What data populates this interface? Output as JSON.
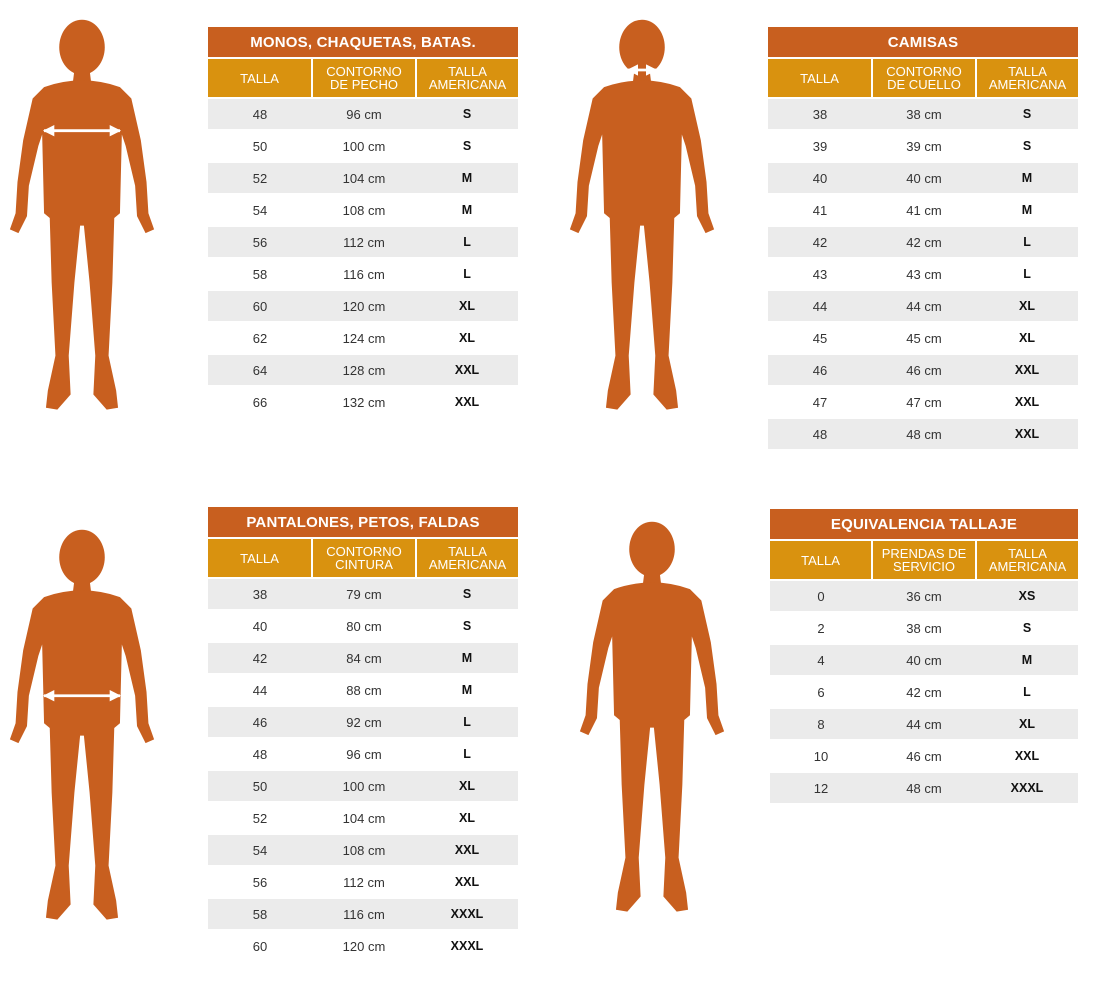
{
  "colors": {
    "figure": "#c85f1f",
    "title_bar": "#c85f1f",
    "header_bar": "#d9920f",
    "row_shade": "#ebebeb",
    "arrow": "#ffffff"
  },
  "icons": [
    "man-silhouette-chest-measure-icon",
    "man-silhouette-neck-measure-icon",
    "man-silhouette-waist-measure-icon",
    "man-silhouette-icon"
  ],
  "tables": {
    "monos": {
      "title": "MONOS, CHAQUETAS, BATAS.",
      "headers": [
        "TALLA",
        "CONTORNO\nDE PECHO",
        "TALLA\nAMERICANA"
      ],
      "rows": [
        [
          "48",
          "96 cm",
          "S"
        ],
        [
          "50",
          "100 cm",
          "S"
        ],
        [
          "52",
          "104 cm",
          "M"
        ],
        [
          "54",
          "108 cm",
          "M"
        ],
        [
          "56",
          "112 cm",
          "L"
        ],
        [
          "58",
          "116 cm",
          "L"
        ],
        [
          "60",
          "120 cm",
          "XL"
        ],
        [
          "62",
          "124 cm",
          "XL"
        ],
        [
          "64",
          "128 cm",
          "XXL"
        ],
        [
          "66",
          "132 cm",
          "XXL"
        ]
      ]
    },
    "camisas": {
      "title": "CAMISAS",
      "headers": [
        "TALLA",
        "CONTORNO\nDE CUELLO",
        "TALLA\nAMERICANA"
      ],
      "rows": [
        [
          "38",
          "38 cm",
          "S"
        ],
        [
          "39",
          "39 cm",
          "S"
        ],
        [
          "40",
          "40 cm",
          "M"
        ],
        [
          "41",
          "41 cm",
          "M"
        ],
        [
          "42",
          "42 cm",
          "L"
        ],
        [
          "43",
          "43 cm",
          "L"
        ],
        [
          "44",
          "44 cm",
          "XL"
        ],
        [
          "45",
          "45 cm",
          "XL"
        ],
        [
          "46",
          "46 cm",
          "XXL"
        ],
        [
          "47",
          "47 cm",
          "XXL"
        ],
        [
          "48",
          "48 cm",
          "XXL"
        ]
      ]
    },
    "pantalones": {
      "title": "PANTALONES, PETOS, FALDAS",
      "headers": [
        "TALLA",
        "CONTORNO\nCINTURA",
        "TALLA\nAMERICANA"
      ],
      "rows": [
        [
          "38",
          "79 cm",
          "S"
        ],
        [
          "40",
          "80 cm",
          "S"
        ],
        [
          "42",
          "84 cm",
          "M"
        ],
        [
          "44",
          "88 cm",
          "M"
        ],
        [
          "46",
          "92 cm",
          "L"
        ],
        [
          "48",
          "96 cm",
          "L"
        ],
        [
          "50",
          "100 cm",
          "XL"
        ],
        [
          "52",
          "104 cm",
          "XL"
        ],
        [
          "54",
          "108 cm",
          "XXL"
        ],
        [
          "56",
          "112 cm",
          "XXL"
        ],
        [
          "58",
          "116 cm",
          "XXXL"
        ],
        [
          "60",
          "120 cm",
          "XXXL"
        ]
      ]
    },
    "equivalencia": {
      "title": "EQUIVALENCIA TALLAJE",
      "headers": [
        "TALLA",
        "PRENDAS DE\nSERVICIO",
        "TALLA\nAMERICANA"
      ],
      "rows": [
        [
          "0",
          "36 cm",
          "XS"
        ],
        [
          "2",
          "38 cm",
          "S"
        ],
        [
          "4",
          "40 cm",
          "M"
        ],
        [
          "6",
          "42 cm",
          "L"
        ],
        [
          "8",
          "44 cm",
          "XL"
        ],
        [
          "10",
          "46 cm",
          "XXL"
        ],
        [
          "12",
          "48 cm",
          "XXXL"
        ]
      ]
    }
  }
}
